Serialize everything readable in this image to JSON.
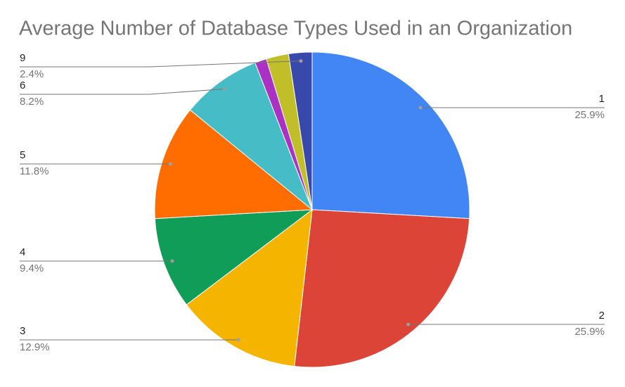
{
  "chart_data": {
    "type": "pie",
    "title": "Average Number of Database Types Used in an Organization",
    "categories": [
      "1",
      "2",
      "3",
      "4",
      "5",
      "6",
      null,
      null,
      "9"
    ],
    "values": [
      25.9,
      25.9,
      12.9,
      9.4,
      11.8,
      8.2,
      1.2,
      2.3,
      2.4
    ],
    "value_labels": [
      "25.9%",
      "25.9%",
      "12.9%",
      "9.4%",
      "11.8%",
      "8.2%",
      null,
      null,
      "2.4%"
    ],
    "colors": [
      "#4285f4",
      "#db4437",
      "#f4b400",
      "#0f9d58",
      "#ff6d01",
      "#46bdc6",
      "#ab30c4",
      "#c0bf2a",
      "#3949ab"
    ]
  }
}
